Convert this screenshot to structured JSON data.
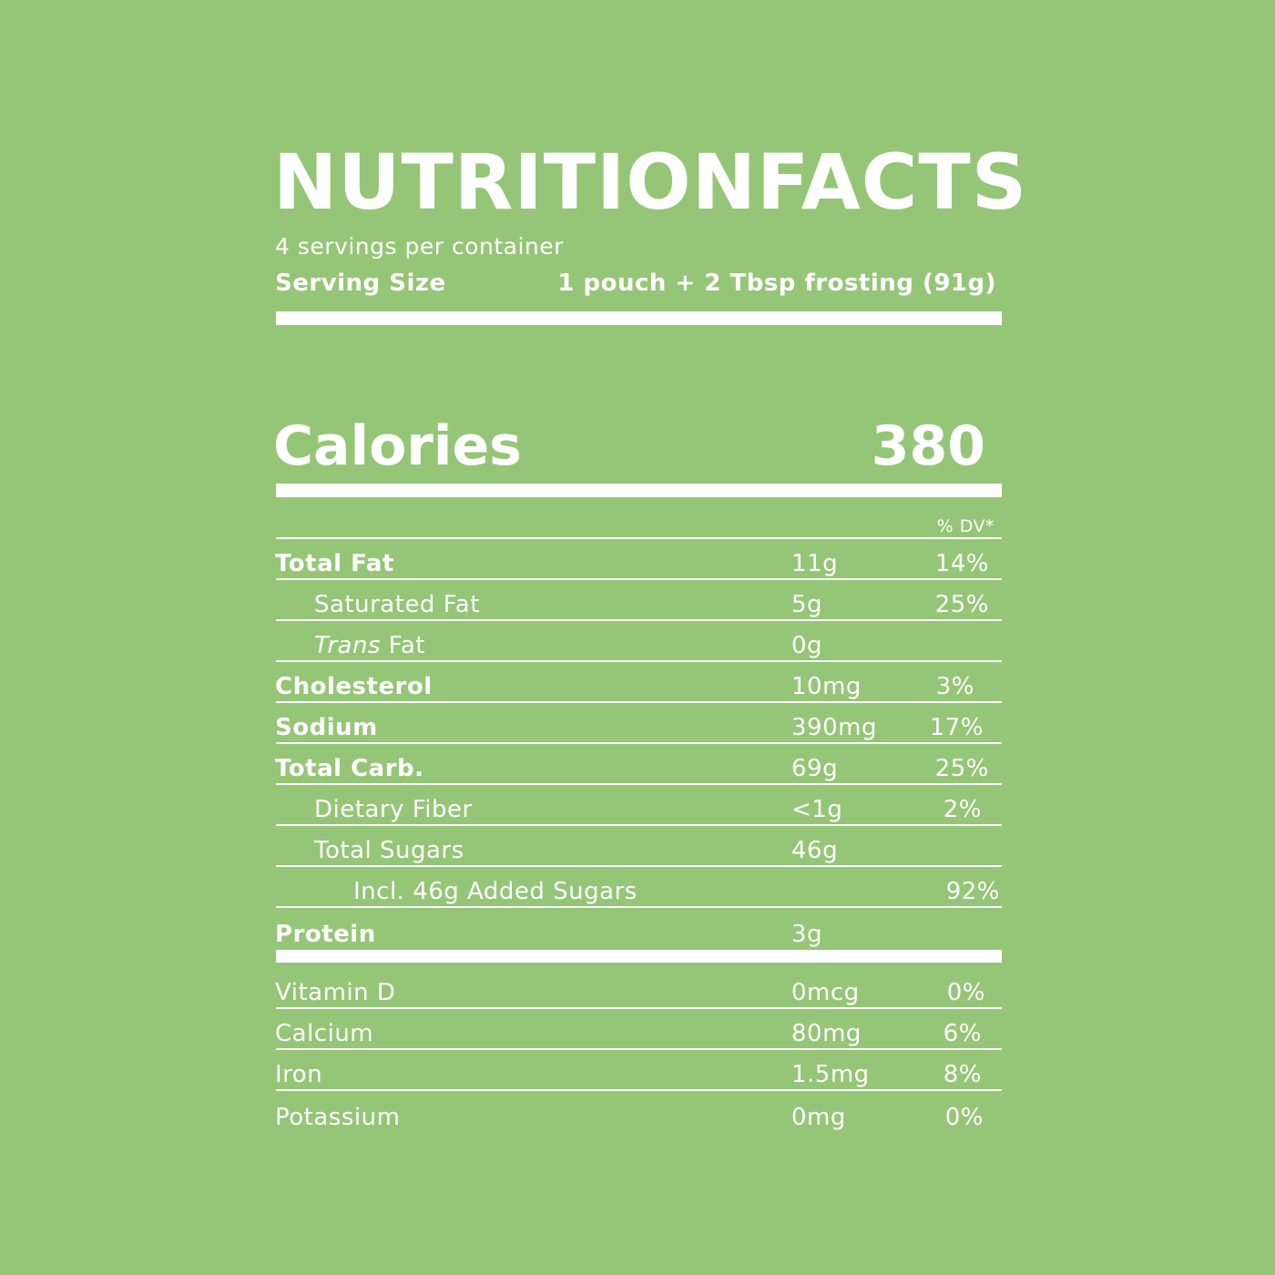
{
  "title": {
    "word1": "NUTRITION",
    "word2": "FACTS"
  },
  "servings_per_container": "4 servings per container",
  "serving_size": {
    "label": "Serving Size",
    "value": "1 pouch + 2 Tbsp frosting (91g)"
  },
  "calories": {
    "label": "Calories",
    "value": "380"
  },
  "dv_header": "% DV*",
  "nutrients": [
    {
      "name": "Total Fat",
      "amount": "11g",
      "dv": "14%"
    },
    {
      "name": "Saturated Fat",
      "amount": "5g",
      "dv": "25%"
    },
    {
      "name_italic": "Trans",
      "name_rest": " Fat",
      "amount": "0g",
      "dv": ""
    },
    {
      "name": "Cholesterol",
      "amount": "10mg",
      "dv": "3%"
    },
    {
      "name": "Sodium",
      "amount": "390mg",
      "dv": "17%"
    },
    {
      "name": "Total Carb.",
      "amount": "69g",
      "dv": "25%"
    },
    {
      "name": "Dietary Fiber",
      "amount": "<1g",
      "dv": "2%"
    },
    {
      "name": "Total Sugars",
      "amount": "46g",
      "dv": ""
    },
    {
      "name": "Incl. 46g Added Sugars",
      "amount": "",
      "dv": "92%"
    },
    {
      "name": "Protein",
      "amount": "3g",
      "dv": ""
    }
  ],
  "vitamins": [
    {
      "name": "Vitamin D",
      "amount": "0mcg",
      "dv": "0%"
    },
    {
      "name": "Calcium",
      "amount": "80mg",
      "dv": "6%"
    },
    {
      "name": "Iron",
      "amount": "1.5mg",
      "dv": "8%"
    },
    {
      "name": "Potassium",
      "amount": "0mg",
      "dv": "0%"
    }
  ],
  "colors": {
    "background": "#95c677",
    "foreground": "#ffffff"
  }
}
